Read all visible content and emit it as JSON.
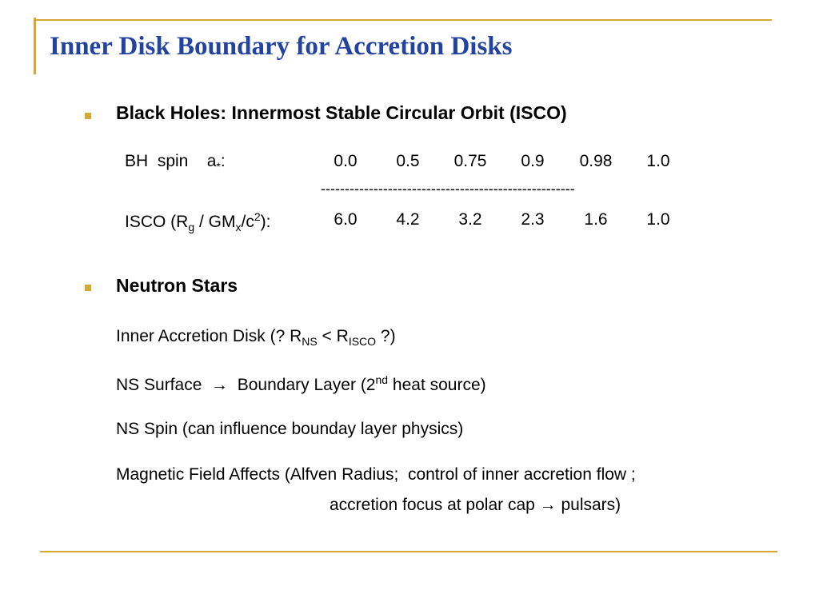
{
  "title": "Inner Disk Boundary for Accretion Disks",
  "black_holes": {
    "heading": "Black Holes: Innermost Stable Circular Orbit (ISCO)",
    "spin_label": [
      "BH  spin    a",
      "*",
      ":"
    ],
    "spin_values": [
      "0.0",
      "0.5",
      "0.75",
      "0.9",
      "0.98",
      "1.0"
    ],
    "divider": "-----------------------------------------------------",
    "isco_label": [
      "ISCO (R",
      "g",
      " / GM",
      "x",
      "/c",
      "2",
      "):"
    ],
    "isco_values": [
      "6.0",
      "4.2",
      "3.2",
      "2.3",
      "1.6",
      "1.0"
    ]
  },
  "neutron_stars": {
    "heading": "Neutron Stars",
    "line1": [
      "Inner Accretion Disk (? R",
      "NS",
      " < R",
      "ISCO",
      " ?)"
    ],
    "line2": [
      "NS Surface  →  Boundary Layer (2",
      "nd",
      " heat source)"
    ],
    "line3": "NS Spin (can influence bounday layer physics)",
    "line4": "Magnetic Field Affects (Alfven Radius;  control of inner accretion flow ;",
    "line5": "accretion focus at polar cap → pulsars)"
  }
}
